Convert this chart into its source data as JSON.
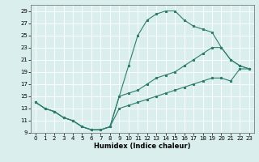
{
  "title": "",
  "xlabel": "Humidex (Indice chaleur)",
  "ylabel": "",
  "bg_color": "#d9eeed",
  "grid_color": "#ffffff",
  "line_color": "#2e7d6e",
  "xlim": [
    -0.5,
    23.5
  ],
  "ylim": [
    9,
    30
  ],
  "yticks": [
    9,
    11,
    13,
    15,
    17,
    19,
    21,
    23,
    25,
    27,
    29
  ],
  "xticks": [
    0,
    1,
    2,
    3,
    4,
    5,
    6,
    7,
    8,
    9,
    10,
    11,
    12,
    13,
    14,
    15,
    16,
    17,
    18,
    19,
    20,
    21,
    22,
    23
  ],
  "line1_x": [
    0,
    1,
    2,
    3,
    4,
    5,
    6,
    7,
    8,
    9,
    10,
    11,
    12,
    13,
    14,
    15,
    16,
    17,
    18,
    19,
    20,
    21,
    22,
    23
  ],
  "line1_y": [
    14,
    13,
    12.5,
    11.5,
    11,
    10,
    9.5,
    9.5,
    10,
    15,
    20,
    25,
    27.5,
    28.5,
    29,
    29,
    27.5,
    26.5,
    26,
    25.5,
    23,
    21,
    20,
    19.5
  ],
  "line2_x": [
    0,
    1,
    2,
    3,
    4,
    5,
    6,
    7,
    8,
    9,
    10,
    11,
    12,
    13,
    14,
    15,
    16,
    17,
    18,
    19,
    20,
    21,
    22,
    23
  ],
  "line2_y": [
    14,
    13,
    12.5,
    11.5,
    11,
    10,
    9.5,
    9.5,
    10,
    15,
    15.5,
    16,
    17,
    18,
    18.5,
    19,
    20,
    21,
    22,
    23,
    23,
    21,
    20,
    19.5
  ],
  "line3_x": [
    0,
    1,
    2,
    3,
    4,
    5,
    6,
    7,
    8,
    9,
    10,
    11,
    12,
    13,
    14,
    15,
    16,
    17,
    18,
    19,
    20,
    21,
    22,
    23
  ],
  "line3_y": [
    14,
    13,
    12.5,
    11.5,
    11,
    10,
    9.5,
    9.5,
    10,
    13,
    13.5,
    14,
    14.5,
    15,
    15.5,
    16,
    16.5,
    17,
    17.5,
    18,
    18,
    17.5,
    19.5,
    19.5
  ],
  "tick_fontsize": 5,
  "xlabel_fontsize": 6,
  "linewidth": 0.8,
  "markersize": 2.0
}
